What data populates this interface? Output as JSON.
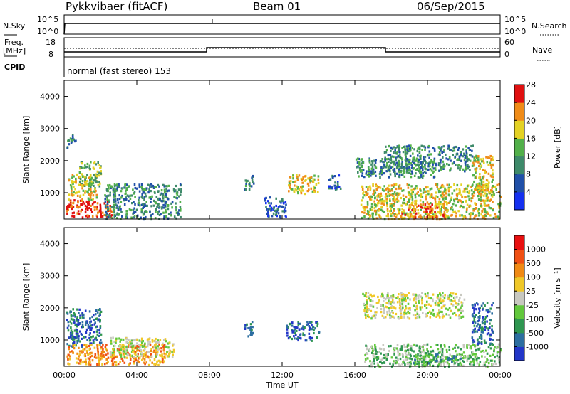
{
  "header": {
    "station": "Pykkvibaer (fitACF)",
    "beam": "Beam 01",
    "date": "06/Sep/2015"
  },
  "summary": {
    "nsky_label": "N.Sky",
    "nsky_ticks": [
      "10^5",
      "10^0"
    ],
    "nsearch_label": "N.Search",
    "nsearch_ticks": [
      "10^5",
      "10^0"
    ],
    "freq_label": "Freq.",
    "freq_unit": "[MHz]",
    "freq_ticks": [
      "18",
      "8"
    ],
    "nave_label": "Nave",
    "nave_ticks": [
      "60",
      "0"
    ],
    "cpid_label": "CPID",
    "cpid_text": "normal (fast stereo) 153"
  },
  "chart_data": [
    {
      "type": "heatmap",
      "name": "power-panel",
      "ylabel": "Slant Range [km]",
      "yticks": [
        "1000",
        "2000",
        "3000",
        "4000"
      ],
      "ylim": [
        180,
        4500
      ],
      "xlim": [
        0,
        24
      ],
      "colorbar_label": "Power [dB]",
      "colorbar_ticks": [
        "4",
        "8",
        "12",
        "16",
        "20",
        "24",
        "28"
      ],
      "colorbar_colors": [
        "#1530f0",
        "#2050a8",
        "#3e8a6a",
        "#52b04a",
        "#e4d224",
        "#f08c18",
        "#e01010"
      ],
      "colorbar_range": [
        0,
        30
      ],
      "regions": [
        {
          "t0": 0.1,
          "t1": 0.6,
          "r0": 2400,
          "r1": 2850,
          "level": 2
        },
        {
          "t0": 0.1,
          "t1": 2.6,
          "r0": 250,
          "r1": 800,
          "level": 6
        },
        {
          "t0": 0.2,
          "t1": 1.8,
          "r0": 800,
          "r1": 1600,
          "level": 4
        },
        {
          "t0": 0.8,
          "t1": 2.0,
          "r0": 1200,
          "r1": 2000,
          "level": 3
        },
        {
          "t0": 2.2,
          "t1": 6.4,
          "r0": 200,
          "r1": 1300,
          "level": 2
        },
        {
          "t0": 9.9,
          "t1": 10.4,
          "r0": 1100,
          "r1": 1600,
          "level": 2
        },
        {
          "t0": 11.0,
          "t1": 12.2,
          "r0": 250,
          "r1": 900,
          "level": 1
        },
        {
          "t0": 12.3,
          "t1": 14.0,
          "r0": 1000,
          "r1": 1600,
          "level": 4
        },
        {
          "t0": 14.5,
          "t1": 15.2,
          "r0": 1100,
          "r1": 1600,
          "level": 1
        },
        {
          "t0": 16.0,
          "t1": 20.4,
          "r0": 1500,
          "r1": 2100,
          "level": 2
        },
        {
          "t0": 16.3,
          "t1": 24.0,
          "r0": 200,
          "r1": 1300,
          "level": 4
        },
        {
          "t0": 17.5,
          "t1": 22.5,
          "r0": 1700,
          "r1": 2500,
          "level": 2
        },
        {
          "t0": 18.5,
          "t1": 21.0,
          "r0": 250,
          "r1": 700,
          "level": 5
        },
        {
          "t0": 22.4,
          "t1": 23.6,
          "r0": 900,
          "r1": 2200,
          "level": 4
        }
      ]
    },
    {
      "type": "heatmap",
      "name": "velocity-panel",
      "ylabel": "Slant Range [km]",
      "yticks": [
        "1000",
        "2000",
        "3000",
        "4000"
      ],
      "ylim": [
        180,
        4500
      ],
      "xlim": [
        0,
        24
      ],
      "xticks": [
        "00:00",
        "04:00",
        "08:00",
        "12:00",
        "16:00",
        "20:00",
        "00:00"
      ],
      "xlabel": "Time UT",
      "colorbar_label": "Velocity [m s⁻¹]",
      "colorbar_ticks": [
        "1000",
        "500",
        "100",
        "25",
        "-25",
        "-100",
        "-500",
        "-1000"
      ],
      "colorbar_colors": [
        "#2236c8",
        "#2c6ea0",
        "#2e9650",
        "#62c83c",
        "#c8c8c0",
        "#f0c828",
        "#f08a14",
        "#f05014",
        "#e81010"
      ],
      "regions": [
        {
          "t0": 0.1,
          "t1": 2.0,
          "r0": 800,
          "r1": 2000,
          "level": 1
        },
        {
          "t0": 0.1,
          "t1": 5.5,
          "r0": 250,
          "r1": 900,
          "level": 6
        },
        {
          "t0": 2.5,
          "t1": 6.0,
          "r0": 500,
          "r1": 1100,
          "level": 4
        },
        {
          "t0": 9.9,
          "t1": 10.4,
          "r0": 1100,
          "r1": 1600,
          "level": 1
        },
        {
          "t0": 12.2,
          "t1": 14.0,
          "r0": 1000,
          "r1": 1600,
          "level": 1
        },
        {
          "t0": 16.4,
          "t1": 22.0,
          "r0": 1700,
          "r1": 2500,
          "level": 4
        },
        {
          "t0": 16.5,
          "t1": 24.0,
          "r0": 200,
          "r1": 900,
          "level": 3
        },
        {
          "t0": 19.0,
          "t1": 22.0,
          "r0": 300,
          "r1": 600,
          "level": 2
        },
        {
          "t0": 22.4,
          "t1": 23.6,
          "r0": 900,
          "r1": 2200,
          "level": 1
        }
      ]
    }
  ]
}
